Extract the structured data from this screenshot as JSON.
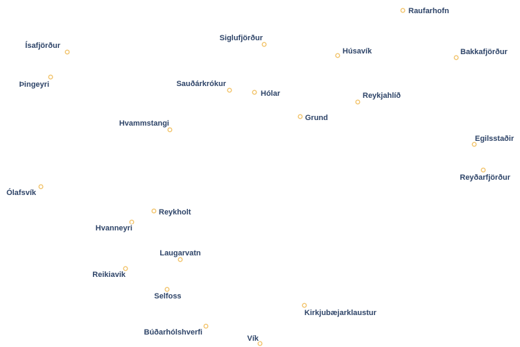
{
  "map": {
    "colors": {
      "marker": "#f2c46d",
      "label_text": "#2e4468",
      "background": "#ffffff"
    },
    "towns": [
      {
        "name": "Raufarhofn"
      },
      {
        "name": "Ísafjörður"
      },
      {
        "name": "Siglufjörður"
      },
      {
        "name": "Húsavík"
      },
      {
        "name": "Bakkafjörður"
      },
      {
        "name": "Þingeyri"
      },
      {
        "name": "Sauðárkrókur"
      },
      {
        "name": "Hólar"
      },
      {
        "name": "Reykjahlíð"
      },
      {
        "name": "Grund"
      },
      {
        "name": "Hvammstangi"
      },
      {
        "name": "Egilsstaðir"
      },
      {
        "name": "Reyðarfjörður"
      },
      {
        "name": "Ólafsvík"
      },
      {
        "name": "Reykholt"
      },
      {
        "name": "Hvanneyri"
      },
      {
        "name": "Laugarvatn"
      },
      {
        "name": "Reikiavik"
      },
      {
        "name": "Selfoss"
      },
      {
        "name": "Kirkjubæjarklaustur"
      },
      {
        "name": "Búðarhólshverfi"
      },
      {
        "name": "Vík"
      }
    ]
  }
}
